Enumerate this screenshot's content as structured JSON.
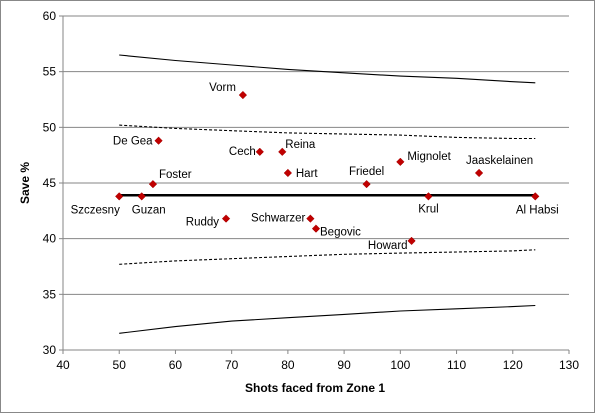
{
  "chart_data": {
    "type": "scatter",
    "title": "",
    "xlabel": "Shots faced from Zone 1",
    "ylabel": "Save %",
    "xlim": [
      40,
      130
    ],
    "ylim": [
      30,
      60
    ],
    "xticks": [
      "40",
      "50",
      "60",
      "70",
      "80",
      "90",
      "100",
      "110",
      "120",
      "130"
    ],
    "yticks": [
      "30",
      "35",
      "40",
      "45",
      "50",
      "55",
      "60"
    ],
    "grid": "horizontal",
    "legend": "none",
    "marker_color": "#c00000",
    "points": [
      {
        "label": "Szczesny",
        "x": 50,
        "y": 43.8
      },
      {
        "label": "Guzan",
        "x": 54,
        "y": 43.8
      },
      {
        "label": "Foster",
        "x": 56,
        "y": 44.9
      },
      {
        "label": "De Gea",
        "x": 57,
        "y": 48.8
      },
      {
        "label": "Ruddy",
        "x": 69,
        "y": 41.8
      },
      {
        "label": "Vorm",
        "x": 72,
        "y": 52.9
      },
      {
        "label": "Cech",
        "x": 75,
        "y": 47.8
      },
      {
        "label": "Reina",
        "x": 79,
        "y": 47.8
      },
      {
        "label": "Hart",
        "x": 80,
        "y": 45.9
      },
      {
        "label": "Schwarzer",
        "x": 84,
        "y": 41.8
      },
      {
        "label": "Begovic",
        "x": 85,
        "y": 40.9
      },
      {
        "label": "Friedel",
        "x": 94,
        "y": 44.9
      },
      {
        "label": "Mignolet",
        "x": 100,
        "y": 46.9
      },
      {
        "label": "Howard",
        "x": 102,
        "y": 39.8
      },
      {
        "label": "Krul",
        "x": 105,
        "y": 43.8
      },
      {
        "label": "Jaaskelainen",
        "x": 114,
        "y": 45.9
      },
      {
        "label": "Al Habsi",
        "x": 124,
        "y": 43.8
      }
    ],
    "mean_line": {
      "x": [
        50,
        124
      ],
      "y": [
        43.9,
        43.9
      ]
    },
    "limit_lines": [
      {
        "style": "solid",
        "x": [
          50,
          60,
          70,
          80,
          90,
          100,
          110,
          120,
          124
        ],
        "y": [
          56.5,
          56.0,
          55.6,
          55.2,
          54.9,
          54.6,
          54.4,
          54.1,
          54.0
        ]
      },
      {
        "style": "dashed",
        "x": [
          50,
          60,
          70,
          80,
          90,
          100,
          110,
          120,
          124
        ],
        "y": [
          50.2,
          49.9,
          49.7,
          49.5,
          49.4,
          49.3,
          49.1,
          49.0,
          49.0
        ]
      },
      {
        "style": "dashed",
        "x": [
          50,
          60,
          70,
          80,
          90,
          100,
          110,
          120,
          124
        ],
        "y": [
          37.7,
          38.0,
          38.2,
          38.4,
          38.6,
          38.7,
          38.8,
          38.9,
          39.0
        ]
      },
      {
        "style": "solid",
        "x": [
          50,
          60,
          70,
          80,
          90,
          100,
          110,
          120,
          124
        ],
        "y": [
          31.5,
          32.1,
          32.6,
          32.9,
          33.2,
          33.5,
          33.7,
          33.9,
          34.0
        ]
      }
    ]
  }
}
